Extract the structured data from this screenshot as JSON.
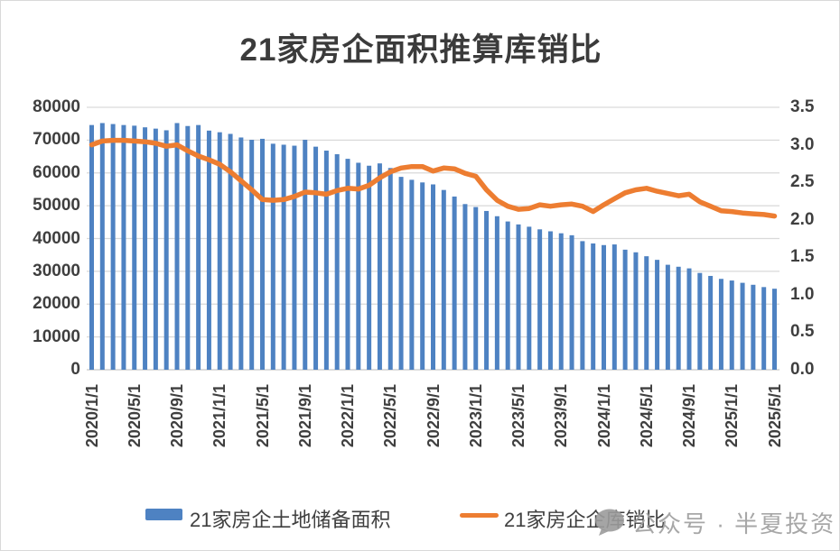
{
  "chart_data": {
    "type": "bar+line combo",
    "title": "21家房企面积推算库销比",
    "grid": true,
    "legend_position": "bottom",
    "x_monthly": [
      "2020/1",
      "2020/2",
      "2020/3",
      "2020/4",
      "2020/5",
      "2020/6",
      "2020/7",
      "2020/8",
      "2020/9",
      "2020/10",
      "2020/11",
      "2020/12",
      "2021/1",
      "2021/2",
      "2021/3",
      "2021/4",
      "2021/5",
      "2021/6",
      "2021/7",
      "2021/8",
      "2021/9",
      "2021/10",
      "2021/11",
      "2021/12",
      "2022/1",
      "2022/2",
      "2022/3",
      "2022/4",
      "2022/5",
      "2022/6",
      "2022/7",
      "2022/8",
      "2022/9",
      "2022/10",
      "2022/11",
      "2022/12",
      "2023/1",
      "2023/2",
      "2023/3",
      "2023/4",
      "2023/5",
      "2023/6",
      "2023/7",
      "2023/8",
      "2023/9",
      "2023/10",
      "2023/11",
      "2023/12",
      "2024/1",
      "2024/2",
      "2024/3",
      "2024/4",
      "2024/5",
      "2024/6",
      "2024/7",
      "2024/8",
      "2024/9",
      "2024/10",
      "2024/11",
      "2024/12",
      "2025/1",
      "2025/2",
      "2025/3",
      "2025/4",
      "2025/5"
    ],
    "x_tick_labels": [
      "2020/1/1",
      "2020/5/1",
      "2020/9/1",
      "2021/1/1",
      "2021/5/1",
      "2021/9/1",
      "2022/1/1",
      "2022/5/1",
      "2022/9/1",
      "2023/1/1",
      "2023/5/1",
      "2023/9/1",
      "2024/1/1",
      "2024/5/1",
      "2024/9/1",
      "2025/1/1",
      "2025/5/1"
    ],
    "x_tick_every_n_months": 4,
    "left_axis": {
      "min": 0,
      "max": 80000,
      "step": 10000,
      "tick_labels": [
        "0",
        "10000",
        "20000",
        "30000",
        "40000",
        "50000",
        "60000",
        "70000",
        "80000"
      ]
    },
    "right_axis": {
      "min": 0.0,
      "max": 3.5,
      "step": 0.5,
      "tick_labels": [
        "0.0",
        "0.5",
        "1.0",
        "1.5",
        "2.0",
        "2.5",
        "3.0",
        "3.5"
      ]
    },
    "series": [
      {
        "name": "21家房企土地储备面积",
        "type": "bar",
        "axis": "left",
        "color": "#4e82c2",
        "values": [
          74600,
          75200,
          74900,
          74600,
          74400,
          73900,
          73500,
          73000,
          75200,
          74300,
          74600,
          72900,
          72400,
          71900,
          70800,
          70100,
          70400,
          68900,
          68600,
          68300,
          70100,
          68000,
          66800,
          65700,
          64300,
          63100,
          62200,
          62900,
          61500,
          58800,
          57900,
          57100,
          56500,
          54800,
          52800,
          50500,
          49600,
          48400,
          46800,
          45200,
          44300,
          43600,
          42800,
          42200,
          41600,
          41000,
          39200,
          38500,
          38000,
          38200,
          36600,
          35800,
          34600,
          33500,
          32000,
          31400,
          30900,
          29500,
          28600,
          27700,
          27200,
          26500,
          25900,
          25200,
          24700
        ]
      },
      {
        "name": "21家房企企库销比",
        "type": "line",
        "axis": "right",
        "color": "#ed7d31",
        "values": [
          3.0,
          3.05,
          3.06,
          3.06,
          3.05,
          3.04,
          3.02,
          2.98,
          3.0,
          2.92,
          2.85,
          2.8,
          2.74,
          2.64,
          2.52,
          2.4,
          2.27,
          2.26,
          2.27,
          2.31,
          2.37,
          2.36,
          2.34,
          2.39,
          2.42,
          2.41,
          2.46,
          2.56,
          2.64,
          2.69,
          2.71,
          2.71,
          2.65,
          2.69,
          2.68,
          2.62,
          2.58,
          2.4,
          2.26,
          2.18,
          2.14,
          2.15,
          2.2,
          2.18,
          2.2,
          2.21,
          2.18,
          2.11,
          2.2,
          2.28,
          2.36,
          2.4,
          2.42,
          2.38,
          2.35,
          2.32,
          2.34,
          2.24,
          2.18,
          2.12,
          2.11,
          2.09,
          2.08,
          2.07,
          2.05
        ]
      }
    ]
  },
  "legend": {
    "bar_label": "21家房企土地储备面积",
    "line_label": "21家房企企库销比"
  },
  "watermark": {
    "icon": "speech-bubble-icon",
    "text": "公众号 · 半夏投资"
  },
  "colors": {
    "bar": "#4e82c2",
    "line": "#ed7d31",
    "gridline": "#d9d9d9",
    "axis_line": "#c6c6c6",
    "tick_text": "#3f3f3f",
    "watermark": "#a0a0a0"
  }
}
